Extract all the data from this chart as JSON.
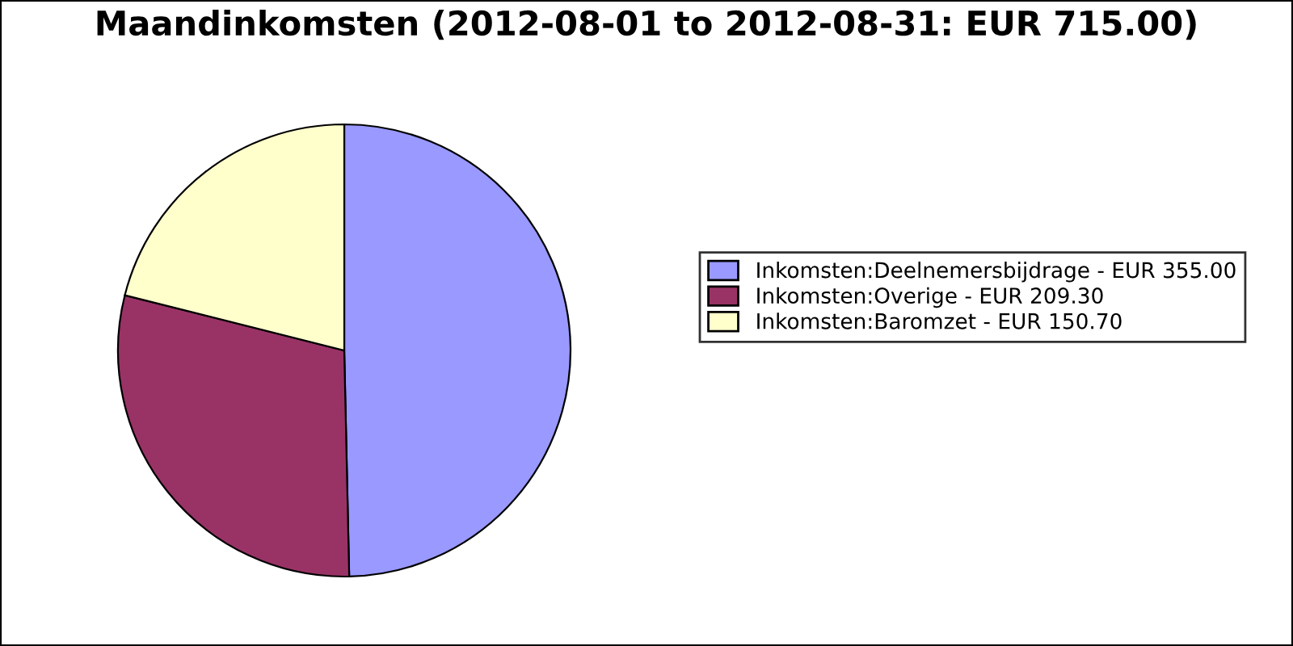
{
  "chart_data": {
    "type": "pie",
    "title": "Maandinkomsten (2012-08-01 to 2012-08-31: EUR 715.00)",
    "categories": [
      "Inkomsten:Deelnemersbijdrage - EUR 355.00",
      "Inkomsten:Overige - EUR 209.30",
      "Inkomsten:Baromzet - EUR 150.70"
    ],
    "values": [
      355.0,
      209.3,
      150.7
    ],
    "colors": [
      "#9999ff",
      "#993366",
      "#ffffcc"
    ],
    "legend": "right"
  }
}
